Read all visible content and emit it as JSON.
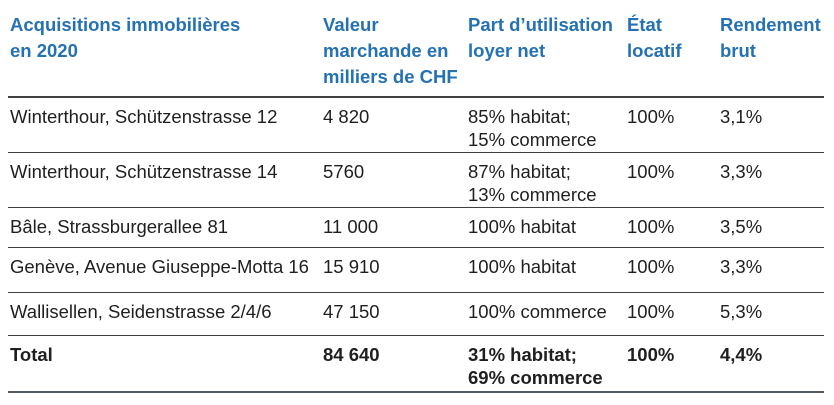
{
  "colors": {
    "header_text": "#2471B3",
    "body_text": "#1f1f1f",
    "rule_dark": "#404040",
    "rule_bottom": "#515b66",
    "background": "#ffffff"
  },
  "table": {
    "columns": [
      {
        "label": "Acquisitions immobilières\nen 2020"
      },
      {
        "label": "Valeur\nmarchande en\nmilliers de CHF"
      },
      {
        "label": "Part d’utilisation\nloyer net"
      },
      {
        "label": "État\nlocatif"
      },
      {
        "label": "Rendement\nbrut"
      }
    ],
    "rows": [
      {
        "property": "Winterthour, Schützenstrasse 12",
        "market_value": "4 820",
        "usage": "85% habitat;\n15% commerce",
        "occupancy": "100%",
        "gross_yield": "3,1%"
      },
      {
        "property": "Winterthour, Schützenstrasse 14",
        "market_value": "5760",
        "usage": "87% habitat;\n13% commerce",
        "occupancy": "100%",
        "gross_yield": "3,3%"
      },
      {
        "property": "Bâle, Strassburgerallee 81",
        "market_value": "11 000",
        "usage": "100% habitat",
        "occupancy": "100%",
        "gross_yield": "3,5%"
      },
      {
        "property": "Genève, Avenue Giuseppe-Motta 16",
        "market_value": "15 910",
        "usage": "100% habitat",
        "occupancy": "100%",
        "gross_yield": "3,3%"
      },
      {
        "property": "Wallisellen, Seidenstrasse 2/4/6",
        "market_value": "47 150",
        "usage": "100% commerce",
        "occupancy": "100%",
        "gross_yield": "5,3%"
      }
    ],
    "total": {
      "property": "Total",
      "market_value": "84 640",
      "usage": "31% habitat;\n69% commerce",
      "occupancy": "100%",
      "gross_yield": "4,4%"
    }
  }
}
